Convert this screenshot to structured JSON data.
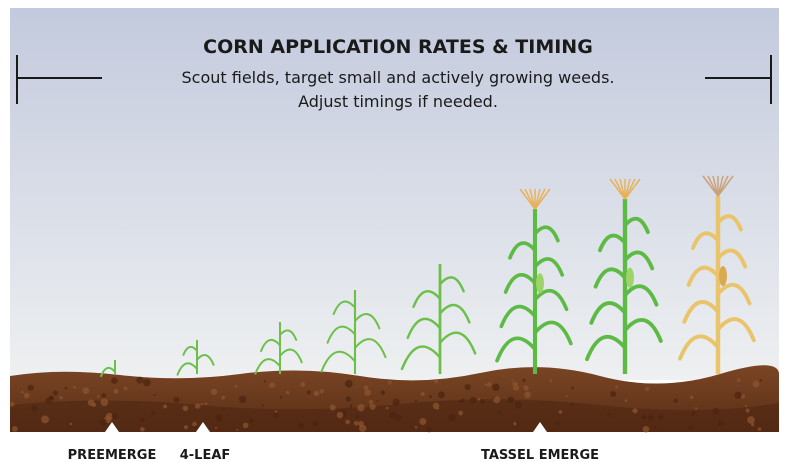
{
  "header": {
    "title": "CORN APPLICATION RATES & TIMING",
    "subtitle": [
      "Scout fields, target small and actively growing weeds.",
      "Adjust timings if needed."
    ]
  },
  "stages": [
    "PREEMERGE",
    "4-LEAF",
    "TASSEL EMERGE"
  ]
}
